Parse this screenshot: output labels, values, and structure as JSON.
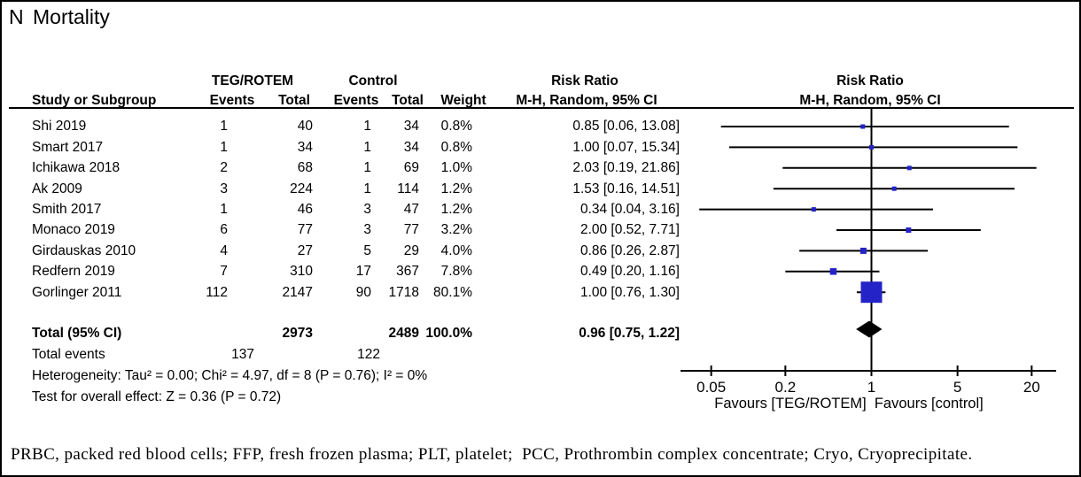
{
  "panel_label": "N",
  "title": "Mortality",
  "table": {
    "group_headers": {
      "treatment": "TEG/ROTEM",
      "control": "Control"
    },
    "columns": {
      "study": "Study or Subgroup",
      "events": "Events",
      "total": "Total",
      "weight": "Weight",
      "risk_ratio_title": "Risk Ratio",
      "risk_ratio": "M-H, Random, 95% CI"
    },
    "total_row": {
      "label": "Total (95% CI)",
      "teg_total": "2973",
      "ctl_total": "2489",
      "weight": "100.0%",
      "rr_text": "0.96 [0.75, 1.22]"
    },
    "total_events": {
      "label": "Total events",
      "teg": "137",
      "ctl": "122"
    },
    "heterogeneity": "Heterogeneity: Tau² = 0.00; Chi² = 4.97, df = 8 (P = 0.76); I² = 0%",
    "overall_effect": "Test for overall effect: Z = 0.36 (P = 0.72)"
  },
  "chart_data": {
    "type": "forest",
    "x_scale": "log",
    "axis_ticks": [
      "0.05",
      "0.2",
      "1",
      "5",
      "20"
    ],
    "favours_left": "Favours [TEG/ROTEM]",
    "favours_right": "Favours [control]",
    "marker_color": "#2323C8",
    "line_color": "#000000",
    "studies": [
      {
        "name": "Shi 2019",
        "teg_events": 1,
        "teg_total": 40,
        "ctl_events": 1,
        "ctl_total": 34,
        "weight": "0.8%",
        "weight_pct": 0.8,
        "rr": 0.85,
        "ci_low": 0.06,
        "ci_high": 13.08,
        "rr_text": "0.85 [0.06, 13.08]"
      },
      {
        "name": "Smart 2017",
        "teg_events": 1,
        "teg_total": 34,
        "ctl_events": 1,
        "ctl_total": 34,
        "weight": "0.8%",
        "weight_pct": 0.8,
        "rr": 1.0,
        "ci_low": 0.07,
        "ci_high": 15.34,
        "rr_text": "1.00 [0.07, 15.34]"
      },
      {
        "name": "Ichikawa 2018",
        "teg_events": 2,
        "teg_total": 68,
        "ctl_events": 1,
        "ctl_total": 69,
        "weight": "1.0%",
        "weight_pct": 1.0,
        "rr": 2.03,
        "ci_low": 0.19,
        "ci_high": 21.86,
        "rr_text": "2.03 [0.19, 21.86]"
      },
      {
        "name": "Ak 2009",
        "teg_events": 3,
        "teg_total": 224,
        "ctl_events": 1,
        "ctl_total": 114,
        "weight": "1.2%",
        "weight_pct": 1.2,
        "rr": 1.53,
        "ci_low": 0.16,
        "ci_high": 14.51,
        "rr_text": "1.53 [0.16, 14.51]"
      },
      {
        "name": "Smith 2017",
        "teg_events": 1,
        "teg_total": 46,
        "ctl_events": 3,
        "ctl_total": 47,
        "weight": "1.2%",
        "weight_pct": 1.2,
        "rr": 0.34,
        "ci_low": 0.04,
        "ci_high": 3.16,
        "rr_text": "0.34 [0.04, 3.16]"
      },
      {
        "name": "Monaco 2019",
        "teg_events": 6,
        "teg_total": 77,
        "ctl_events": 3,
        "ctl_total": 77,
        "weight": "3.2%",
        "weight_pct": 3.2,
        "rr": 2.0,
        "ci_low": 0.52,
        "ci_high": 7.71,
        "rr_text": "2.00 [0.52, 7.71]"
      },
      {
        "name": "Girdauskas 2010",
        "teg_events": 4,
        "teg_total": 27,
        "ctl_events": 5,
        "ctl_total": 29,
        "weight": "4.0%",
        "weight_pct": 4.0,
        "rr": 0.86,
        "ci_low": 0.26,
        "ci_high": 2.87,
        "rr_text": "0.86 [0.26, 2.87]"
      },
      {
        "name": "Redfern 2019",
        "teg_events": 7,
        "teg_total": 310,
        "ctl_events": 17,
        "ctl_total": 367,
        "weight": "7.8%",
        "weight_pct": 7.8,
        "rr": 0.49,
        "ci_low": 0.2,
        "ci_high": 1.16,
        "rr_text": "0.49 [0.20, 1.16]"
      },
      {
        "name": "Gorlinger 2011",
        "teg_events": 112,
        "teg_total": 2147,
        "ctl_events": 90,
        "ctl_total": 1718,
        "weight": "80.1%",
        "weight_pct": 80.1,
        "rr": 1.0,
        "ci_low": 0.76,
        "ci_high": 1.3,
        "rr_text": "1.00 [0.76, 1.30]"
      }
    ],
    "overall": {
      "rr": 0.96,
      "ci_low": 0.75,
      "ci_high": 1.22
    }
  },
  "caption": "PRBC, packed red blood cells; FFP, fresh frozen plasma; PLT, platelet;  PCC, Prothrombin complex concentrate; Cryo, Cryoprecipitate."
}
